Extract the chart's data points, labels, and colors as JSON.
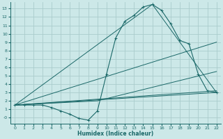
{
  "background_color": "#cce8e8",
  "grid_color": "#aacccc",
  "line_color": "#1a6868",
  "xlabel": "Humidex (Indice chaleur)",
  "xlim": [
    -0.5,
    22.5
  ],
  "ylim": [
    -0.7,
    13.8
  ],
  "xticks": [
    0,
    1,
    2,
    3,
    4,
    5,
    6,
    7,
    8,
    9,
    10,
    11,
    12,
    13,
    14,
    15,
    16,
    17,
    18,
    19,
    20,
    21,
    22
  ],
  "yticks": [
    0,
    1,
    2,
    3,
    4,
    5,
    6,
    7,
    8,
    9,
    10,
    11,
    12,
    13
  ],
  "curve1_x": [
    0,
    1,
    2,
    3,
    4,
    5,
    6,
    7,
    8,
    9,
    10,
    11,
    12,
    13,
    14,
    15,
    16,
    17,
    18,
    19,
    20,
    21,
    22
  ],
  "curve1_y": [
    1.5,
    1.5,
    1.5,
    1.5,
    1.2,
    0.8,
    0.4,
    -0.1,
    -0.3,
    0.8,
    5.2,
    9.5,
    11.5,
    12.2,
    13.2,
    13.5,
    12.8,
    11.2,
    9.2,
    8.8,
    5.2,
    3.2,
    3.0
  ],
  "fan_lines": [
    {
      "x": [
        0,
        22
      ],
      "y": [
        1.5,
        9.0
      ]
    },
    {
      "x": [
        0,
        15,
        22
      ],
      "y": [
        1.5,
        13.5,
        3.0
      ]
    },
    {
      "x": [
        0,
        9,
        22
      ],
      "y": [
        1.5,
        2.0,
        5.5
      ]
    },
    {
      "x": [
        0,
        22
      ],
      "y": [
        1.5,
        3.2
      ]
    },
    {
      "x": [
        0,
        22
      ],
      "y": [
        1.5,
        3.0
      ]
    }
  ]
}
